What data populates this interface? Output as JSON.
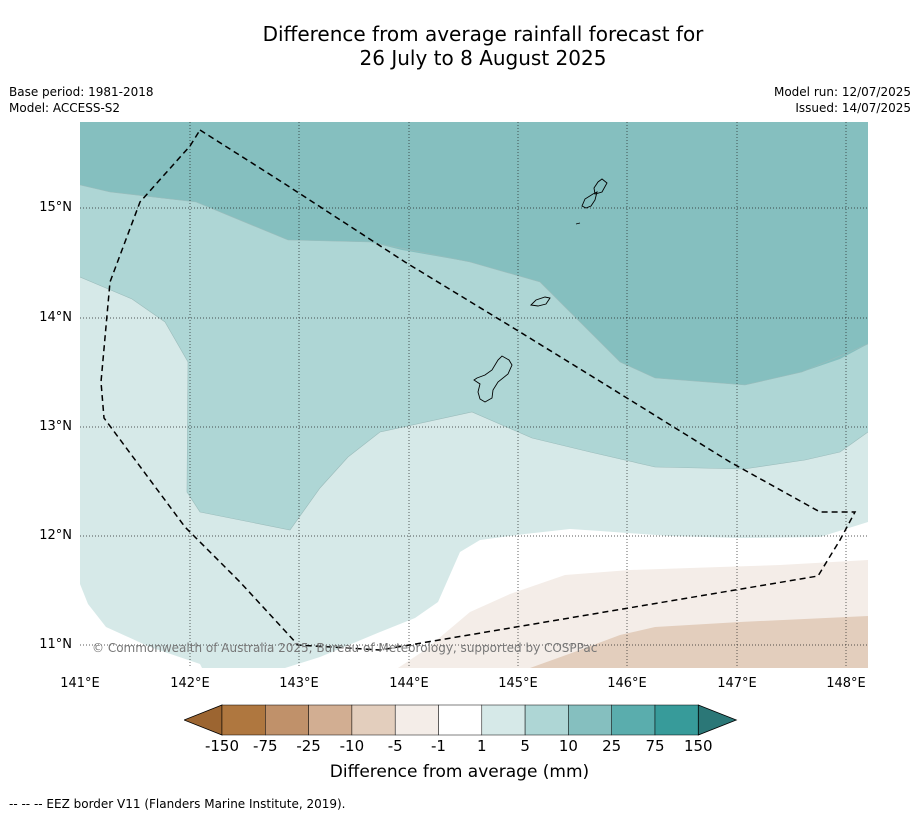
{
  "title": {
    "line1": "Difference from average rainfall forecast for",
    "line2": "26 July to 8 August 2025"
  },
  "meta": {
    "base_period": "Base period: 1981-2018",
    "model": "Model: ACCESS-S2",
    "model_run": "Model run: 12/07/2025",
    "issued": "Issued: 14/07/2025"
  },
  "map": {
    "copyright": "© Commonwealth of Australia 2025, Bureau of Meteorology, supported by COSPPac",
    "lat_labels": [
      "15°N",
      "14°N",
      "13°N",
      "12°N",
      "11°N"
    ],
    "lon_labels": [
      "141°E",
      "142°E",
      "143°E",
      "144°E",
      "145°E",
      "146°E",
      "147°E",
      "148°E"
    ]
  },
  "colorbar": {
    "ticks": [
      "-150",
      "-75",
      "-25",
      "-10",
      "-5",
      "-1",
      "1",
      "5",
      "10",
      "25",
      "75",
      "150"
    ],
    "colors": [
      "#9c6531",
      "#af773f",
      "#c0916a",
      "#d2ae92",
      "#e3cebd",
      "#f4ede8",
      "#ffffff",
      "#d6e9e8",
      "#aed6d5",
      "#85bfbf",
      "#5aadad",
      "#379b9a",
      "#2b7777"
    ],
    "label": "Difference from average (mm)"
  },
  "footer": "--  --  -- EEZ border V11 (Flanders Marine Institute, 2019)."
}
